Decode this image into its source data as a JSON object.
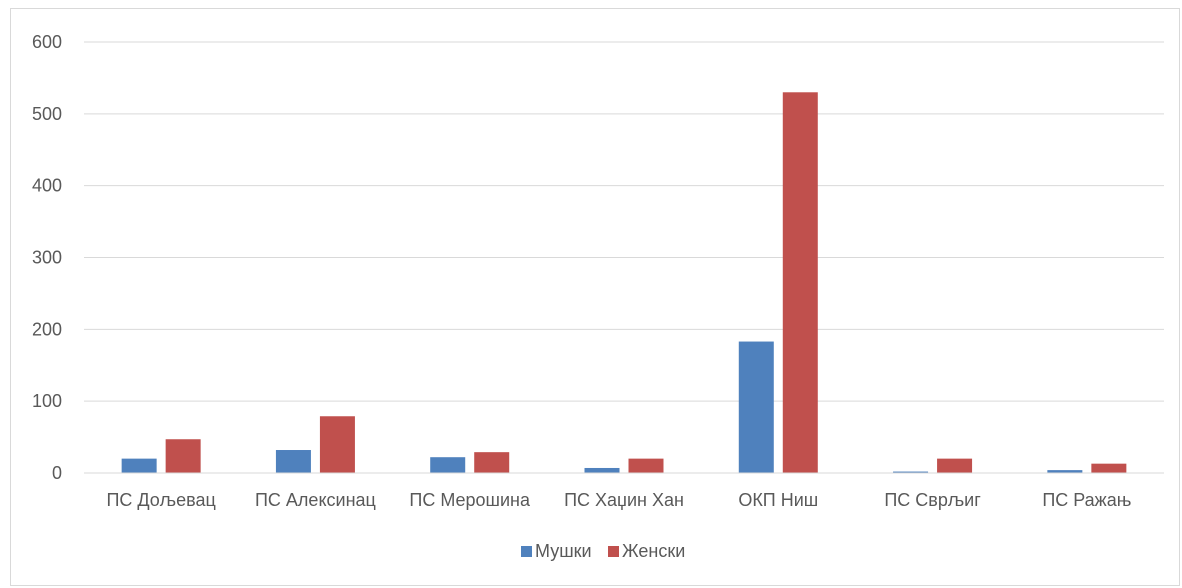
{
  "chart_data": {
    "type": "bar",
    "categories": [
      "ПС Дољевац",
      "ПС Алексинац",
      "ПС Мерошина",
      "ПС Хаџин Хан",
      "ОКП Ниш",
      "ПС Сврљиг",
      "ПС Ражањ"
    ],
    "series": [
      {
        "name": "Мушки",
        "color": "#4f81bd",
        "values": [
          20,
          32,
          22,
          7,
          183,
          2,
          4
        ]
      },
      {
        "name": "Женски",
        "color": "#c0504d",
        "values": [
          47,
          79,
          29,
          20,
          530,
          20,
          13
        ]
      }
    ],
    "title": "",
    "xlabel": "",
    "ylabel": "",
    "ylim": [
      0,
      600
    ],
    "yticks": [
      "0",
      "100",
      "200",
      "300",
      "400",
      "500",
      "600"
    ],
    "grid": true,
    "legend_position": "bottom"
  }
}
